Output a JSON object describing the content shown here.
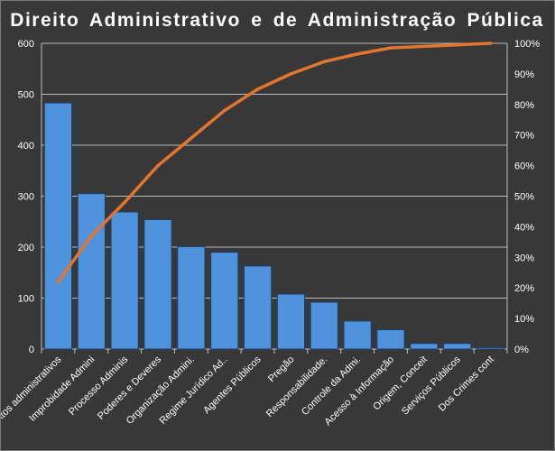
{
  "chart_data": {
    "type": "bar",
    "title": "Direito  Administrativo  e de  Administração  Pública",
    "categories": [
      "Atos administrativos",
      "Improbidade Admini",
      "Processo Adminis",
      "Poderes e Deveres",
      "Organização Admini.",
      "Regime Jurídico Ad..",
      "Agentes Públicos",
      "Pregão",
      "Responsabilidade.",
      "Controle da Admi.",
      "Acesso à Informação",
      "Origem, Conceit",
      "Serviços Públicos",
      "Dos Crimes cont"
    ],
    "series": [
      {
        "type": "bar",
        "values": [
          483,
          305,
          269,
          254,
          201,
          190,
          163,
          108,
          92,
          55,
          38,
          11,
          11,
          3
        ]
      },
      {
        "type": "line",
        "axis": "right",
        "values": [
          22,
          37,
          48,
          60,
          69,
          78,
          85,
          90,
          94,
          96.5,
          98.5,
          99,
          99.5,
          100
        ]
      }
    ],
    "ylim": [
      0,
      600
    ],
    "yticks": [
      "0",
      "100",
      "200",
      "300",
      "400",
      "500",
      "600"
    ],
    "y2lim": [
      0,
      100
    ],
    "y2ticks": [
      "0%",
      "10%",
      "20%",
      "30%",
      "40%",
      "50%",
      "60%",
      "70%",
      "80%",
      "90%",
      "100%"
    ],
    "grid": true,
    "colors": {
      "bar": "#4f93dd",
      "bar_edge": "#1d3f6b",
      "line": "#e3762e",
      "background": "#383838",
      "grid": "#bdbdbd",
      "text": "#ffffff"
    }
  }
}
